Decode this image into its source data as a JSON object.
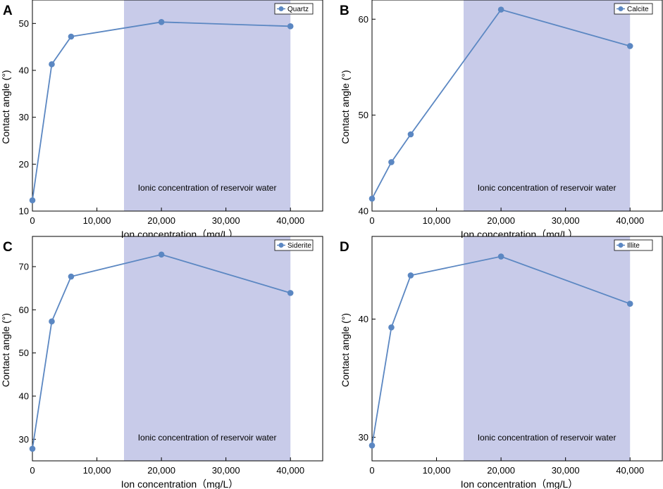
{
  "colors": {
    "line": "#5b87c2",
    "marker": "#5b87c2",
    "band": "#c8cbe9",
    "axis": "#000000"
  },
  "chart_data": [
    {
      "panel": "A",
      "type": "line",
      "series": [
        {
          "name": "Quartz",
          "x": [
            0,
            3000,
            6000,
            20000,
            40000
          ],
          "values": [
            12.3,
            41.3,
            47.2,
            50.3,
            49.4
          ]
        }
      ],
      "xlabel": "Ion concentration（mg/L）",
      "ylabel": "Contact angle (°)",
      "xlim": [
        0,
        45000
      ],
      "ylim": [
        10,
        55
      ],
      "xticks": [
        0,
        10000,
        20000,
        30000,
        40000
      ],
      "xtick_labels": [
        "0",
        "10,000",
        "20,000",
        "30,000",
        "40,000"
      ],
      "yticks": [
        10,
        20,
        30,
        40,
        50
      ],
      "ytick_labels": [
        "10",
        "20",
        "30",
        "40",
        "50"
      ],
      "shaded_range": [
        14200,
        40000
      ],
      "shaded_label": "Ionic concentration of reservoir water",
      "legend_position": "top-right"
    },
    {
      "panel": "B",
      "type": "line",
      "series": [
        {
          "name": "Calcite",
          "x": [
            0,
            3000,
            6000,
            20000,
            40000
          ],
          "values": [
            41.3,
            45.1,
            48.0,
            61.0,
            57.2
          ]
        }
      ],
      "xlabel": "Ion concentration（mg/L）",
      "ylabel": "Contact angle (°)",
      "xlim": [
        0,
        45000
      ],
      "ylim": [
        40,
        62
      ],
      "xticks": [
        0,
        10000,
        20000,
        30000,
        40000
      ],
      "xtick_labels": [
        "0",
        "10,000",
        "20,000",
        "30,000",
        "40,000"
      ],
      "yticks": [
        40,
        50,
        60
      ],
      "ytick_labels": [
        "40",
        "50",
        "60"
      ],
      "shaded_range": [
        14200,
        40000
      ],
      "shaded_label": "Ionic concentration of reservoir water",
      "legend_position": "top-right"
    },
    {
      "panel": "C",
      "type": "line",
      "series": [
        {
          "name": "Siderite",
          "x": [
            0,
            3000,
            6000,
            20000,
            40000
          ],
          "values": [
            27.8,
            57.3,
            67.7,
            72.8,
            63.9
          ]
        }
      ],
      "xlabel": "Ion concentration（mg/L）",
      "ylabel": "Contact angle (°)",
      "xlim": [
        0,
        45000
      ],
      "ylim": [
        25,
        77
      ],
      "xticks": [
        0,
        10000,
        20000,
        30000,
        40000
      ],
      "xtick_labels": [
        "0",
        "10,000",
        "20,000",
        "30,000",
        "40,000"
      ],
      "yticks": [
        30,
        40,
        50,
        60,
        70
      ],
      "ytick_labels": [
        "30",
        "40",
        "50",
        "60",
        "70"
      ],
      "shaded_range": [
        14200,
        40000
      ],
      "shaded_label": "Ionic concentration of reservoir water",
      "legend_position": "top-right"
    },
    {
      "panel": "D",
      "type": "line",
      "series": [
        {
          "name": "Illite",
          "x": [
            0,
            3000,
            6000,
            20000,
            40000
          ],
          "values": [
            29.3,
            39.3,
            43.7,
            45.3,
            41.3
          ]
        }
      ],
      "xlabel": "Ion concentration（mg/L）",
      "ylabel": "Contact angle (°)",
      "xlim": [
        0,
        45000
      ],
      "ylim": [
        28,
        47
      ],
      "xticks": [
        0,
        10000,
        20000,
        30000,
        40000
      ],
      "xtick_labels": [
        "0",
        "10,000",
        "20,000",
        "30,000",
        "40,000"
      ],
      "yticks": [
        30,
        40
      ],
      "ytick_labels": [
        "30",
        "40"
      ],
      "shaded_range": [
        14200,
        40000
      ],
      "shaded_label": "Ionic concentration of reservoir water",
      "legend_position": "top-right"
    }
  ]
}
